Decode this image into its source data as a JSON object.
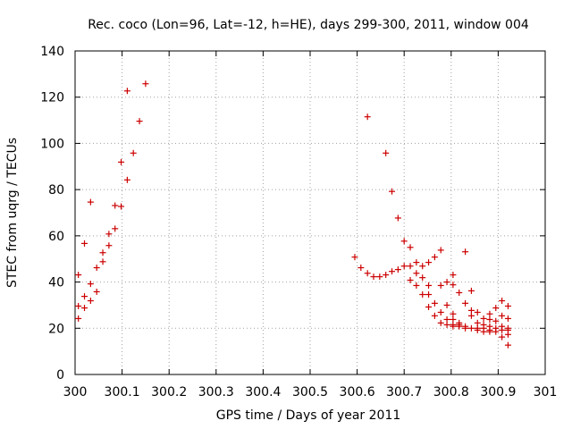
{
  "chart_data": {
    "type": "scatter",
    "title": "Rec. coco (Lon=96, Lat=-12, h=HE), days 299-300, 2011, window 004",
    "xlabel": "GPS time / Days of year 2011",
    "ylabel": "STEC from uqrg / TECUs",
    "xlim": [
      300,
      301
    ],
    "ylim": [
      0,
      140
    ],
    "xticks": [
      "300",
      "300.1",
      "300.2",
      "300.3",
      "300.4",
      "300.5",
      "300.6",
      "300.7",
      "300.8",
      "300.9",
      "301"
    ],
    "yticks": [
      "0",
      "20",
      "40",
      "60",
      "80",
      "100",
      "120",
      "140"
    ],
    "grid": true,
    "marker": "+",
    "color": "#cc0000",
    "series": [
      {
        "name": "STEC",
        "points": [
          [
            300.007,
            24.2
          ],
          [
            300.007,
            29.6
          ],
          [
            300.007,
            43.1
          ],
          [
            300.02,
            28.8
          ],
          [
            300.02,
            33.8
          ],
          [
            300.02,
            56.7
          ],
          [
            300.033,
            31.9
          ],
          [
            300.033,
            39.2
          ],
          [
            300.033,
            74.6
          ],
          [
            300.046,
            35.8
          ],
          [
            300.046,
            46.2
          ],
          [
            300.059,
            48.8
          ],
          [
            300.059,
            52.7
          ],
          [
            300.072,
            55.8
          ],
          [
            300.072,
            60.8
          ],
          [
            300.085,
            63.1
          ],
          [
            300.085,
            73.1
          ],
          [
            300.098,
            72.7
          ],
          [
            300.098,
            91.9
          ],
          [
            300.111,
            84.2
          ],
          [
            300.111,
            122.7
          ],
          [
            300.124,
            95.8
          ],
          [
            300.137,
            109.6
          ],
          [
            300.15,
            125.8
          ],
          [
            300.595,
            50.8
          ],
          [
            300.608,
            46.2
          ],
          [
            300.622,
            43.8
          ],
          [
            300.622,
            111.5
          ],
          [
            300.635,
            42.3
          ],
          [
            300.648,
            42.3
          ],
          [
            300.661,
            43.1
          ],
          [
            300.661,
            95.8
          ],
          [
            300.674,
            44.6
          ],
          [
            300.674,
            79.2
          ],
          [
            300.687,
            45.4
          ],
          [
            300.687,
            67.7
          ],
          [
            300.7,
            46.9
          ],
          [
            300.7,
            57.7
          ],
          [
            300.713,
            40.8
          ],
          [
            300.713,
            46.9
          ],
          [
            300.713,
            55.0
          ],
          [
            300.726,
            38.5
          ],
          [
            300.726,
            43.8
          ],
          [
            300.726,
            48.5
          ],
          [
            300.739,
            34.6
          ],
          [
            300.739,
            41.9
          ],
          [
            300.739,
            46.9
          ],
          [
            300.752,
            29.2
          ],
          [
            300.752,
            34.6
          ],
          [
            300.752,
            38.5
          ],
          [
            300.752,
            48.5
          ],
          [
            300.765,
            25.4
          ],
          [
            300.765,
            30.8
          ],
          [
            300.765,
            50.8
          ],
          [
            300.778,
            22.3
          ],
          [
            300.778,
            26.9
          ],
          [
            300.778,
            38.5
          ],
          [
            300.778,
            53.8
          ],
          [
            300.791,
            21.5
          ],
          [
            300.791,
            23.8
          ],
          [
            300.791,
            30.0
          ],
          [
            300.791,
            40.0
          ],
          [
            300.804,
            20.8
          ],
          [
            300.804,
            21.5
          ],
          [
            300.804,
            23.8
          ],
          [
            300.804,
            26.2
          ],
          [
            300.804,
            38.8
          ],
          [
            300.804,
            43.1
          ],
          [
            300.817,
            20.8
          ],
          [
            300.817,
            21.5
          ],
          [
            300.817,
            22.3
          ],
          [
            300.817,
            35.4
          ],
          [
            300.83,
            20.0
          ],
          [
            300.83,
            20.8
          ],
          [
            300.83,
            30.8
          ],
          [
            300.83,
            53.1
          ],
          [
            300.843,
            20.0
          ],
          [
            300.843,
            25.4
          ],
          [
            300.843,
            27.7
          ],
          [
            300.843,
            36.2
          ],
          [
            300.856,
            19.2
          ],
          [
            300.856,
            20.0
          ],
          [
            300.856,
            22.3
          ],
          [
            300.856,
            26.9
          ],
          [
            300.869,
            18.5
          ],
          [
            300.869,
            20.0
          ],
          [
            300.869,
            21.5
          ],
          [
            300.869,
            24.2
          ],
          [
            300.882,
            18.5
          ],
          [
            300.882,
            19.2
          ],
          [
            300.882,
            20.8
          ],
          [
            300.882,
            23.8
          ],
          [
            300.882,
            26.2
          ],
          [
            300.895,
            18.5
          ],
          [
            300.895,
            20.0
          ],
          [
            300.895,
            23.1
          ],
          [
            300.895,
            28.8
          ],
          [
            300.908,
            16.2
          ],
          [
            300.908,
            19.2
          ],
          [
            300.908,
            20.8
          ],
          [
            300.908,
            25.4
          ],
          [
            300.908,
            31.9
          ],
          [
            300.921,
            12.7
          ],
          [
            300.921,
            17.3
          ],
          [
            300.921,
            19.2
          ],
          [
            300.921,
            20.0
          ],
          [
            300.921,
            24.2
          ],
          [
            300.921,
            29.6
          ]
        ]
      }
    ]
  }
}
